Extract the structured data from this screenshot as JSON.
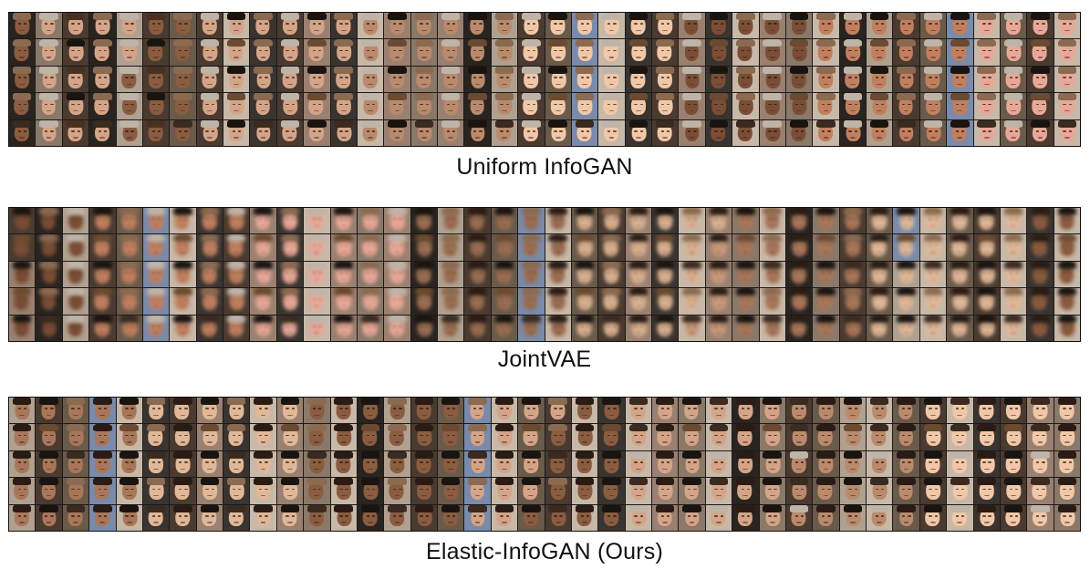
{
  "panels": [
    {
      "caption": "Uniform InfoGAN",
      "style": "sharp"
    },
    {
      "caption": "JointVAE",
      "style": "blurry"
    },
    {
      "caption": "Elastic-InfoGAN (Ours)",
      "style": "sharp"
    }
  ],
  "grid": {
    "columns": 40,
    "rows": 5
  },
  "colors": {
    "skin": [
      "#c89a7a",
      "#a8775a",
      "#e0b898",
      "#8a5c40",
      "#d4a488",
      "#b98a6c",
      "#f0c8a8",
      "#7a4e36",
      "#c08060",
      "#e8a898",
      "#9a6e52",
      "#d8b090"
    ],
    "background": [
      "#6a5a4a",
      "#3a3430",
      "#8a7868",
      "#b0a090",
      "#5a6a8a",
      "#7a8aaa",
      "#4a3a30",
      "#c8b8a8",
      "#9a8070",
      "#2a2420"
    ],
    "hair": [
      "#2a1c14",
      "#4a3020",
      "#1a1410",
      "#6a4a30",
      "#8a6a50",
      "#3a2a20",
      "#bfb4a8"
    ]
  }
}
